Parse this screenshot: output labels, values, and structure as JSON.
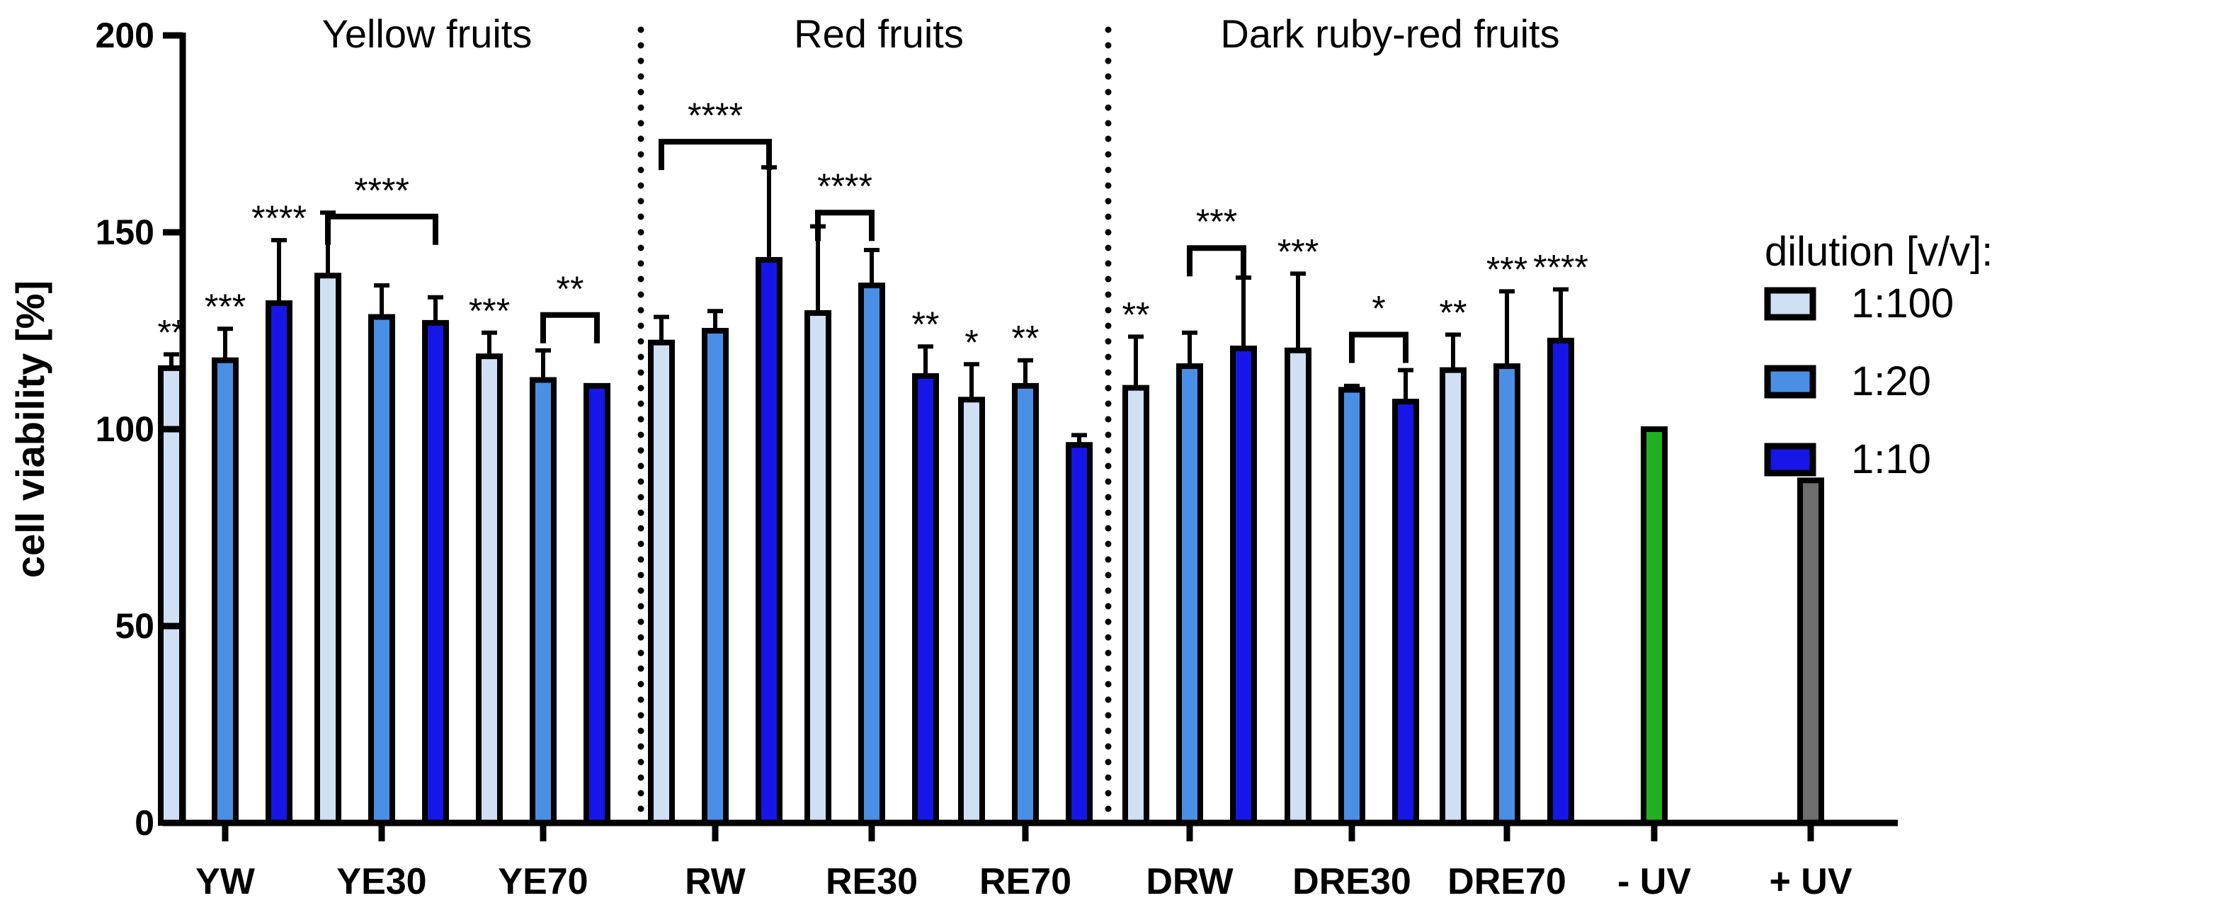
{
  "chart_data": {
    "type": "bar",
    "ylabel": "cell viability [%]",
    "ylim": [
      0,
      200
    ],
    "yticks": [
      0,
      50,
      100,
      150,
      200
    ],
    "grid": false,
    "legend": {
      "title": "dilution [v/v]:",
      "placement": "right",
      "entries": [
        {
          "name": "1:100",
          "color": "#cfe0f5"
        },
        {
          "name": "1:20",
          "color": "#4a8fe6"
        },
        {
          "name": "1:10",
          "color": "#1616e8"
        }
      ]
    },
    "groups": [
      {
        "label": "Yellow fruits",
        "categories": [
          "YW",
          "YE30",
          "YE70"
        ]
      },
      {
        "label": "Red fruits",
        "categories": [
          "RW",
          "RE30",
          "RE70"
        ]
      },
      {
        "label": "Dark ruby-red fruits",
        "categories": [
          "DRW",
          "DRE30",
          "DRE70"
        ]
      }
    ],
    "categories": [
      "YW",
      "YE30",
      "YE70",
      "RW",
      "RE30",
      "RE70",
      "DRW",
      "DRE30",
      "DRE70",
      "- UV",
      "+ UV"
    ],
    "series": [
      {
        "name": "1:100",
        "color": "#cfe0f5",
        "values": [
          115.5,
          139,
          118.5,
          122,
          129.5,
          107.5,
          110.5,
          120,
          115,
          null,
          null
        ],
        "errors": [
          3.5,
          16,
          6,
          6.5,
          22,
          9,
          13,
          19.5,
          9,
          null,
          null
        ]
      },
      {
        "name": "1:20",
        "color": "#4a8fe6",
        "values": [
          117.5,
          128.5,
          112.5,
          125,
          136.5,
          111,
          116,
          110,
          116,
          null,
          null
        ],
        "errors": [
          8,
          8,
          7.5,
          5,
          9,
          6.5,
          8.5,
          1,
          19,
          null,
          null
        ]
      },
      {
        "name": "1:10",
        "color": "#1616e8",
        "values": [
          132,
          127,
          111,
          143,
          113.5,
          96,
          120.5,
          107,
          122.5,
          null,
          null
        ],
        "errors": [
          16,
          6.5,
          0.5,
          23.5,
          7.5,
          2.5,
          18,
          8,
          13,
          null,
          null
        ]
      }
    ],
    "controls": [
      {
        "category": "- UV",
        "value": 100,
        "color": "#22b022"
      },
      {
        "category": "+ UV",
        "value": 87,
        "color": "#6e6e6e"
      }
    ],
    "annotations": [
      {
        "text": "**",
        "category": "YW",
        "series": 0,
        "type": "bar"
      },
      {
        "text": "***",
        "category": "YW",
        "series": 1,
        "type": "bar"
      },
      {
        "text": "****",
        "category": "YW",
        "series": 2,
        "type": "bar"
      },
      {
        "text": "****",
        "category": "YE30",
        "type": "bracket",
        "from_series": 0,
        "to_series": 2,
        "y": 154
      },
      {
        "text": "***",
        "category": "YE70",
        "series": 0,
        "type": "bar"
      },
      {
        "text": "**",
        "category": "YE70",
        "type": "bracket",
        "from_series": 1,
        "to_series": 2,
        "y": 129
      },
      {
        "text": "****",
        "category": "RW",
        "type": "bracket",
        "from_series": 0,
        "to_series": 2,
        "y": 173
      },
      {
        "text": "****",
        "category": "RE30",
        "type": "bracket",
        "from_series": 0,
        "to_series": 1,
        "y": 155
      },
      {
        "text": "**",
        "category": "RE30",
        "series": 2,
        "type": "bar"
      },
      {
        "text": "*",
        "category": "RE70",
        "series": 0,
        "type": "bar"
      },
      {
        "text": "**",
        "category": "RE70",
        "series": 1,
        "type": "bar"
      },
      {
        "text": "**",
        "category": "DRW",
        "series": 0,
        "type": "bar"
      },
      {
        "text": "***",
        "category": "DRW",
        "type": "bracket",
        "from_series": 1,
        "to_series": 2,
        "y": 146
      },
      {
        "text": "***",
        "category": "DRE30",
        "series": 0,
        "type": "bar"
      },
      {
        "text": "*",
        "category": "DRE30",
        "type": "bracket",
        "from_series": 1,
        "to_series": 2,
        "y": 124
      },
      {
        "text": "**",
        "category": "DRE70",
        "series": 0,
        "type": "bar"
      },
      {
        "text": "***",
        "category": "DRE70",
        "series": 1,
        "type": "bar"
      },
      {
        "text": "****",
        "category": "DRE70",
        "series": 2,
        "type": "bar"
      }
    ]
  }
}
